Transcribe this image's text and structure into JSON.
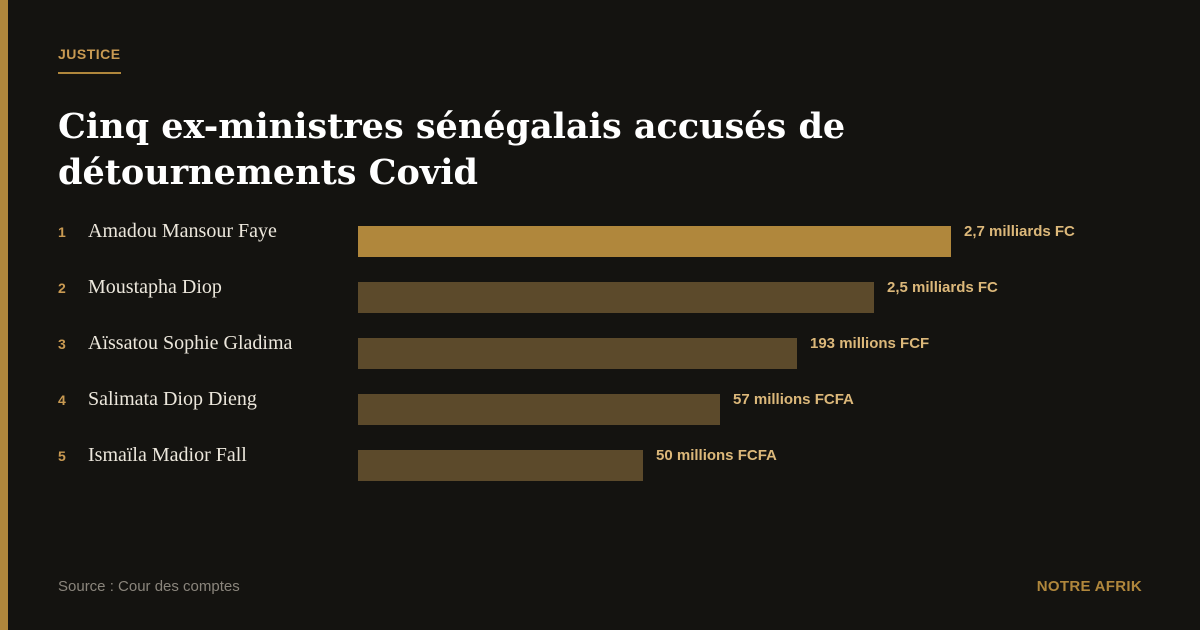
{
  "category": "JUSTICE",
  "title": "Cinq ex-ministres sénégalais accusés de détournements Covid",
  "source": "Source : Cour des comptes",
  "brand": "NOTRE AFRIK",
  "colors": {
    "background": "#141310",
    "accent": "#b0873c",
    "bar_secondary": "#5c4a2b",
    "value_label": "#dcb87a",
    "text": "#ffffff"
  },
  "chart_data": {
    "type": "bar",
    "orientation": "horizontal",
    "title": "Cinq ex-ministres sénégalais accusés de détournements Covid",
    "ranks": [
      "1",
      "2",
      "3",
      "4",
      "5"
    ],
    "categories": [
      "Amadou Mansour Faye",
      "Moustapha Diop",
      "Aïssatou Sophie Gladima",
      "Salimata Diop Dieng",
      "Ismaïla Madior Fall"
    ],
    "value_labels": [
      "2,7 milliards FC",
      "2,5 milliards FC",
      "193 millions FCF",
      "57 millions FCFA",
      "50 millions FCFA"
    ],
    "relative_bar_length": [
      1.0,
      0.87,
      0.74,
      0.61,
      0.48
    ],
    "highlight_index": 0,
    "grid": false,
    "legend": "none"
  }
}
